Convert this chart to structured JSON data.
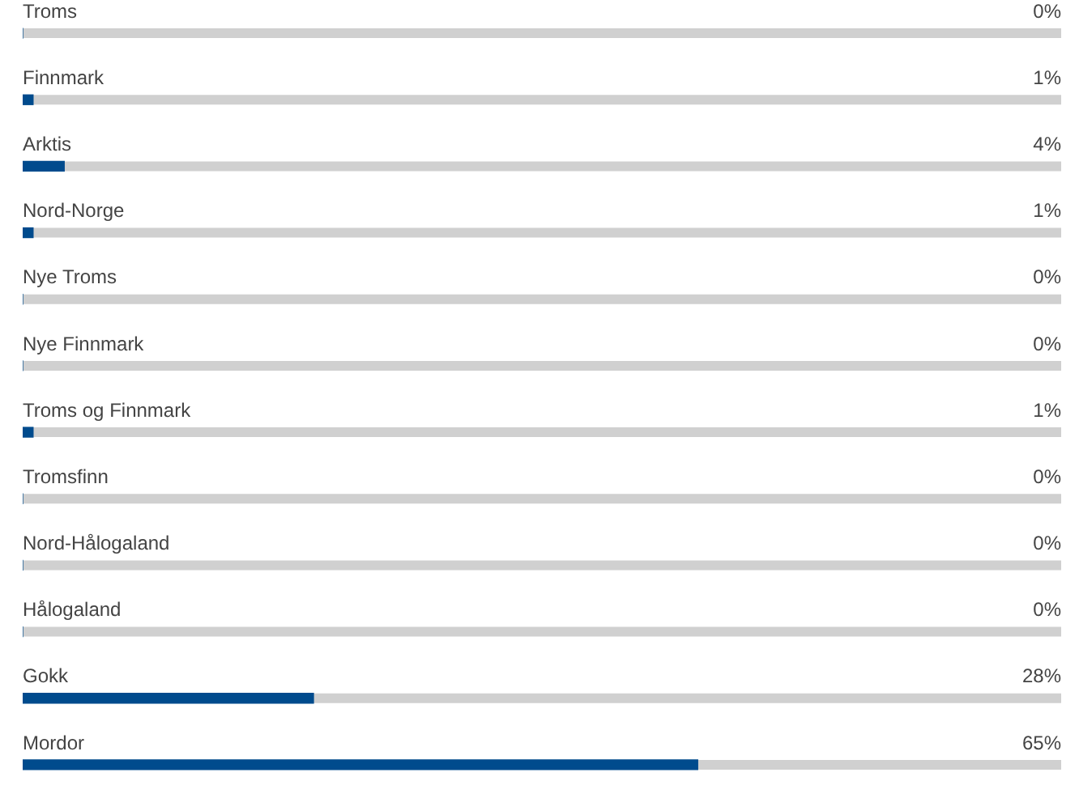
{
  "chart_data": {
    "type": "bar",
    "orientation": "horizontal",
    "categories": [
      "Troms",
      "Finnmark",
      "Arktis",
      "Nord-Norge",
      "Nye Troms",
      "Nye Finnmark",
      "Troms og Finnmark",
      "Tromsfinn",
      "Nord-Hålogaland",
      "Hålogaland",
      "Gokk",
      "Mordor"
    ],
    "values": [
      0,
      1,
      4,
      1,
      0,
      0,
      1,
      0,
      0,
      0,
      28,
      65
    ],
    "value_labels": [
      "0%",
      "1%",
      "4%",
      "1%",
      "0%",
      "0%",
      "1%",
      "0%",
      "0%",
      "0%",
      "28%",
      "65%"
    ],
    "color": "#004b8d",
    "xlim": [
      0,
      100
    ]
  }
}
